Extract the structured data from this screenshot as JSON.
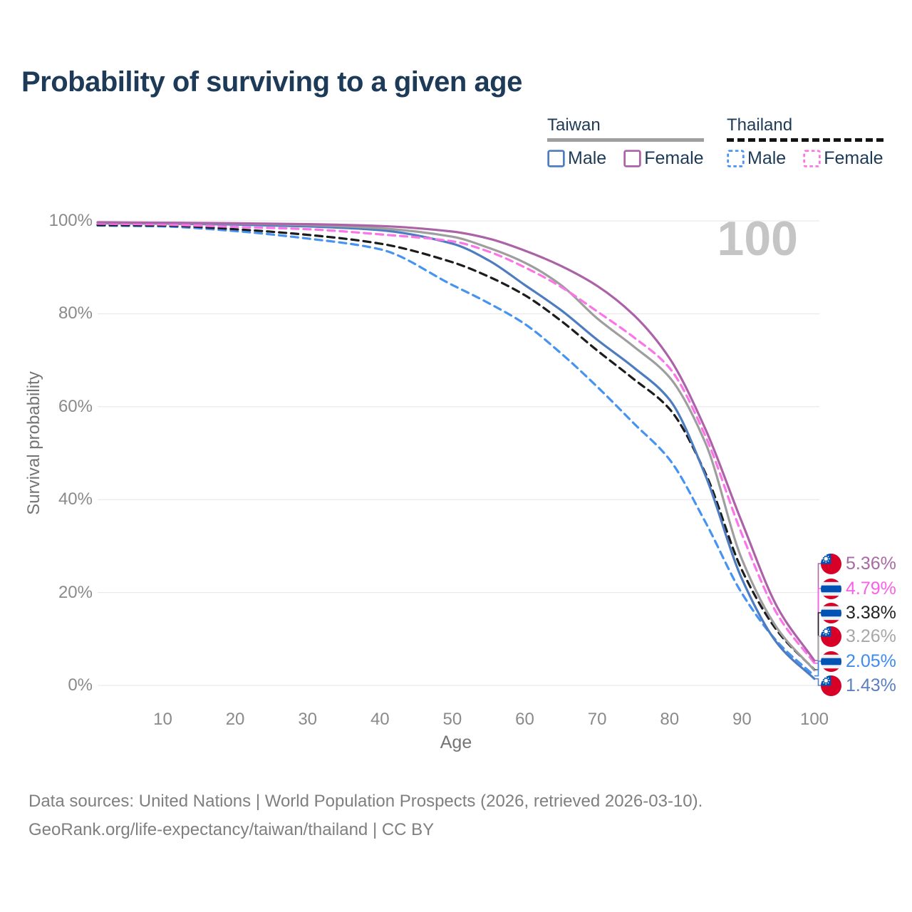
{
  "title": "Probability of surviving to a given age",
  "age_indicator": "100",
  "legend": {
    "groups": [
      {
        "name": "Taiwan",
        "line_style": "solid",
        "underline_color": "#9e9e9e",
        "items": [
          {
            "label": "Male",
            "color": "#4e7cc0",
            "dashed": false
          },
          {
            "label": "Female",
            "color": "#ac62a7",
            "dashed": false
          }
        ]
      },
      {
        "name": "Thailand",
        "line_style": "dashed",
        "underline_color": "#141414",
        "items": [
          {
            "label": "Male",
            "color": "#4693f2",
            "dashed": true
          },
          {
            "label": "Female",
            "color": "#fb74e8",
            "dashed": true
          }
        ]
      }
    ]
  },
  "chart_data": {
    "type": "line",
    "title": "Probability of surviving to a given age",
    "xlabel": "Age",
    "ylabel": "Survival probability",
    "xlim": [
      1,
      100
    ],
    "ylim": [
      0,
      100
    ],
    "grid": "horizontal",
    "xticks": [
      10,
      20,
      30,
      40,
      50,
      60,
      70,
      80,
      90,
      100
    ],
    "yticks": [
      {
        "value": 0,
        "label": "0%"
      },
      {
        "value": 20,
        "label": "20%"
      },
      {
        "value": 40,
        "label": "40%"
      },
      {
        "value": 60,
        "label": "60%"
      },
      {
        "value": 80,
        "label": "80%"
      },
      {
        "value": 100,
        "label": "100%"
      }
    ],
    "x": [
      1,
      10,
      20,
      30,
      40,
      50,
      55,
      60,
      65,
      70,
      75,
      80,
      85,
      90,
      95,
      100
    ],
    "series": [
      {
        "name": "Thailand Male",
        "country": "Thailand",
        "sex": "Male",
        "color": "#4693f2",
        "dashed": true,
        "values": [
          99.0,
          98.8,
          97.8,
          96.2,
          93.9,
          86.2,
          82.3,
          77.8,
          71.5,
          64.3,
          56.5,
          48.6,
          35.0,
          19.8,
          9.2,
          2.05
        ]
      },
      {
        "name": "Thailand",
        "country": "Thailand",
        "sex": "Both",
        "color": "#1c1c1c",
        "dashed": true,
        "values": [
          99.1,
          99.0,
          98.2,
          97.0,
          95.1,
          91.1,
          88.0,
          84.0,
          78.5,
          72.1,
          66.0,
          59.5,
          45.5,
          24.8,
          11.5,
          3.38
        ]
      },
      {
        "name": "Taiwan Male",
        "country": "Taiwan",
        "sex": "Male",
        "color": "#4e7cc0",
        "dashed": false,
        "values": [
          99.5,
          99.4,
          99.2,
          98.8,
          98.0,
          95.1,
          91.5,
          86.2,
          80.8,
          74.4,
          68.5,
          61.5,
          45.0,
          22.9,
          8.8,
          1.43
        ]
      },
      {
        "name": "Taiwan",
        "country": "Taiwan",
        "sex": "Both",
        "color": "#9e9e9e",
        "dashed": false,
        "values": [
          99.6,
          99.5,
          99.4,
          99.1,
          98.4,
          96.6,
          94.2,
          91.0,
          86.2,
          79.0,
          73.0,
          66.3,
          52.0,
          27.1,
          12.0,
          3.26
        ]
      },
      {
        "name": "Thailand Female",
        "country": "Thailand",
        "sex": "Female",
        "color": "#fb74e8",
        "dashed": true,
        "values": [
          99.4,
          99.2,
          98.7,
          98.2,
          97.1,
          95.6,
          93.4,
          90.0,
          85.8,
          80.5,
          75.0,
          68.3,
          53.5,
          32.5,
          15.0,
          4.79
        ]
      },
      {
        "name": "Taiwan Female",
        "country": "Taiwan",
        "sex": "Female",
        "color": "#ac62a7",
        "dashed": false,
        "values": [
          99.7,
          99.6,
          99.5,
          99.3,
          98.9,
          97.7,
          96.2,
          93.6,
          90.3,
          86.0,
          79.8,
          70.4,
          55.0,
          35.1,
          16.5,
          5.36
        ]
      }
    ]
  },
  "end_labels": [
    {
      "text": "5.36%",
      "value": 5.36,
      "series": "Taiwan Female",
      "flag": "taiwan",
      "color": "#a86aa4"
    },
    {
      "text": "4.79%",
      "value": 4.79,
      "series": "Thailand Female",
      "flag": "thailand",
      "color": "#fb5fe8"
    },
    {
      "text": "3.38%",
      "value": 3.38,
      "series": "Thailand",
      "flag": "thailand",
      "color": "#222222"
    },
    {
      "text": "3.26%",
      "value": 3.26,
      "series": "Taiwan",
      "flag": "taiwan",
      "color": "#a8a8a8"
    },
    {
      "text": "2.05%",
      "value": 2.05,
      "series": "Thailand Male",
      "flag": "thailand",
      "color": "#3e8bf0"
    },
    {
      "text": "1.43%",
      "value": 1.43,
      "series": "Taiwan Male",
      "flag": "taiwan",
      "color": "#5b7fc0"
    }
  ],
  "footer": {
    "line1": "Data sources: United Nations | World Population Prospects (2026, retrieved 2026-03-10).",
    "line2": "GeoRank.org/life-expectancy/taiwan/thailand | CC BY"
  }
}
